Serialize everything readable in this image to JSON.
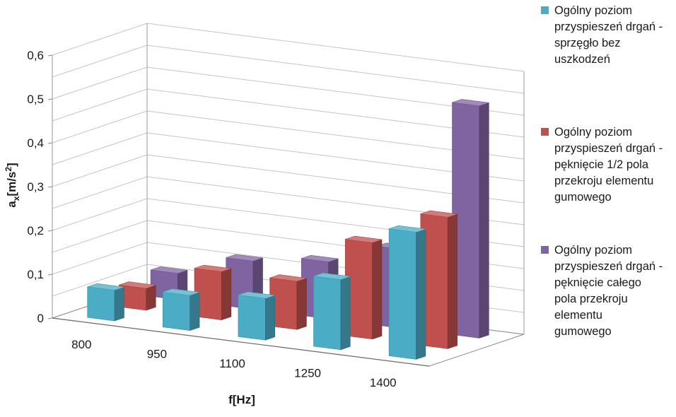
{
  "chart_data": {
    "type": "bar",
    "title": "",
    "xlabel": "f[Hz]",
    "ylabel": "a",
    "ylabel_sub": "x",
    "ylabel_unit": "[m/s",
    "ylabel_sup": "2",
    "ylabel_close": "]",
    "ylim": [
      0,
      0.6
    ],
    "yticks": [
      "0",
      "0,1",
      "0,2",
      "0,3",
      "0,4",
      "0,5",
      "0,6"
    ],
    "categories": [
      "800",
      "950",
      "1100",
      "1250",
      "1400"
    ],
    "series": [
      {
        "name": "Ogólny poziom przyspieszeń drgań - sprzęgło bez uszkodzeń",
        "color": "#4BACC6",
        "values": [
          0.07,
          0.08,
          0.095,
          0.16,
          0.29
        ]
      },
      {
        "name": "Ogólny poziom przyspieszeń drgań - pęknięcie 1/2 pola przekroju elementu gumowego",
        "color": "#C0504D",
        "values": [
          0.05,
          0.11,
          0.11,
          0.22,
          0.3
        ]
      },
      {
        "name": "Ogólny poziom przyspieszeń drgań - pęknięcie całego pola przekroju elementu gumowego",
        "color": "#8064A2",
        "values": [
          0.06,
          0.11,
          0.13,
          0.18,
          0.53
        ]
      }
    ]
  },
  "legend": {
    "items": [
      {
        "label": "Ogólny poziom\nprzyspieszeń drgań -\nsprzęgło bez\nuszkodzeń",
        "color": "#4BACC6"
      },
      {
        "label": "Ogólny poziom\nprzyspieszeń drgań -\npęknięcie 1/2 pola\nprzekroju elementu\ngumowego",
        "color": "#C0504D"
      },
      {
        "label": "Ogólny poziom\nprzyspieszeń drgań -\npęknięcie całego\npola przekroju\nelementu\ngumowego",
        "color": "#8064A2"
      }
    ]
  }
}
